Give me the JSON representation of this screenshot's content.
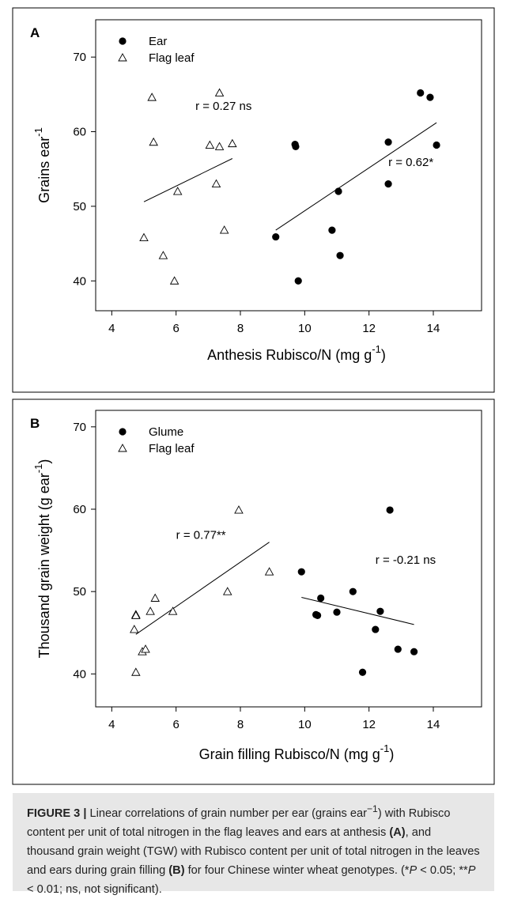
{
  "chart_data": [
    {
      "panel_label": "A",
      "type": "scatter",
      "xlabel": "Anthesis Rubisco/N (mg g",
      "xlabel_sup": "-1",
      "xlabel_end": ")",
      "ylabel": "Grains ear",
      "ylabel_sup": "-1",
      "xlim": [
        3.5,
        15.5
      ],
      "ylim": [
        36,
        75
      ],
      "xticks": [
        4,
        6,
        8,
        10,
        12,
        14
      ],
      "yticks": [
        40,
        50,
        60,
        70
      ],
      "grid": false,
      "legend_position": "top-left",
      "series": [
        {
          "name": "Ear",
          "marker": "filled-circle",
          "points": [
            [
              9.1,
              45.9
            ],
            [
              9.7,
              58.3
            ],
            [
              9.72,
              58.0
            ],
            [
              9.8,
              40.0
            ],
            [
              10.85,
              46.8
            ],
            [
              11.05,
              52.0
            ],
            [
              11.1,
              43.4
            ],
            [
              12.6,
              58.6
            ],
            [
              12.6,
              53.0
            ],
            [
              13.6,
              65.2
            ],
            [
              13.9,
              64.6
            ],
            [
              14.1,
              58.2
            ]
          ],
          "fit_line": [
            [
              9.1,
              46.8
            ],
            [
              14.1,
              61.2
            ]
          ],
          "annotation": "r = 0.62*",
          "annotation_at": [
            12.6,
            55.4
          ]
        },
        {
          "name": "Flag leaf",
          "marker": "open-triangle",
          "points": [
            [
              5.0,
              45.8
            ],
            [
              5.25,
              64.6
            ],
            [
              5.3,
              58.6
            ],
            [
              5.6,
              43.4
            ],
            [
              5.95,
              40.0
            ],
            [
              6.05,
              52.0
            ],
            [
              7.05,
              58.2
            ],
            [
              7.25,
              53.0
            ],
            [
              7.35,
              65.2
            ],
            [
              7.35,
              58.0
            ],
            [
              7.5,
              46.8
            ],
            [
              7.75,
              58.4
            ]
          ],
          "fit_line": [
            [
              5.0,
              50.6
            ],
            [
              7.75,
              56.4
            ]
          ],
          "annotation": "r = 0.27 ns",
          "annotation_at": [
            6.6,
            62.9
          ]
        }
      ]
    },
    {
      "panel_label": "B",
      "type": "scatter",
      "xlabel": "Grain filling Rubisco/N (mg g",
      "xlabel_sup": "-1",
      "xlabel_end": ")",
      "ylabel": "Thousand grain weight (g ear",
      "ylabel_sup": "-1",
      "ylabel_end": ")",
      "xlim": [
        3.5,
        15.5
      ],
      "ylim": [
        36,
        72
      ],
      "xticks": [
        4,
        6,
        8,
        10,
        12,
        14
      ],
      "yticks": [
        40,
        50,
        60,
        70
      ],
      "grid": false,
      "legend_position": "top-left",
      "series": [
        {
          "name": "Glume",
          "marker": "filled-circle",
          "points": [
            [
              9.9,
              52.4
            ],
            [
              10.35,
              47.2
            ],
            [
              10.4,
              47.1
            ],
            [
              10.5,
              49.2
            ],
            [
              11.0,
              47.5
            ],
            [
              11.5,
              50.0
            ],
            [
              11.8,
              40.2
            ],
            [
              12.2,
              45.4
            ],
            [
              12.35,
              47.6
            ],
            [
              12.65,
              59.9
            ],
            [
              12.9,
              43.0
            ],
            [
              13.4,
              42.7
            ]
          ],
          "fit_line": [
            [
              9.9,
              49.3
            ],
            [
              13.4,
              46.0
            ]
          ],
          "annotation": "r = -0.21 ns",
          "annotation_at": [
            12.2,
            53.4
          ]
        },
        {
          "name": "Flag leaf",
          "marker": "open-triangle",
          "points": [
            [
              4.7,
              45.4
            ],
            [
              4.75,
              47.2
            ],
            [
              4.75,
              47.1
            ],
            [
              4.75,
              40.2
            ],
            [
              4.95,
              42.7
            ],
            [
              5.05,
              43.0
            ],
            [
              5.2,
              47.6
            ],
            [
              5.35,
              49.2
            ],
            [
              5.9,
              47.6
            ],
            [
              7.6,
              50.0
            ],
            [
              7.95,
              59.9
            ],
            [
              8.9,
              52.4
            ]
          ],
          "fit_line": [
            [
              4.75,
              44.8
            ],
            [
              8.9,
              56.0
            ]
          ],
          "annotation": "r = 0.77**",
          "annotation_at": [
            6.0,
            56.4
          ]
        }
      ]
    }
  ],
  "caption": {
    "figure_label": "FIGURE 3 |",
    "text_1": " Linear correlations of grain number per ear (grains ear",
    "sup_1": "−1",
    "text_2": ") with Rubisco content per unit of total nitrogen in the flag leaves and ears at anthesis ",
    "bold_a": "(A)",
    "text_3": ", and thousand grain weight (TGW) with Rubisco content per unit of total nitrogen in the leaves and ears during grain filling ",
    "bold_b": "(B)",
    "text_4": " for four Chinese winter wheat genotypes. (*",
    "p1": "P",
    "text_5": " < 0.05; **",
    "p2": "P",
    "text_6": " < 0.01; ns, not significant)."
  }
}
